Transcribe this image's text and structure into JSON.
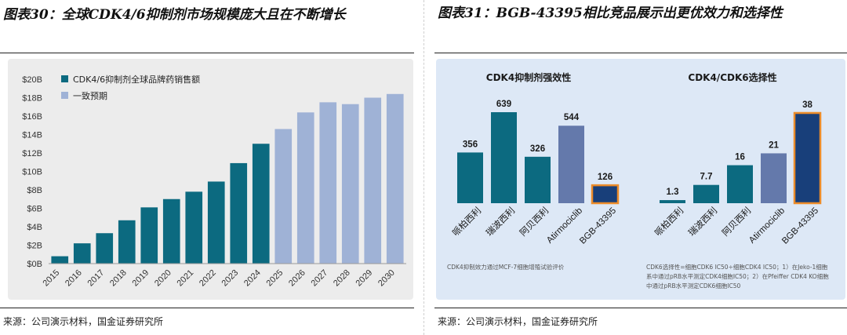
{
  "left": {
    "title": "图表30：全球CDK4/6抑制剂市场规模庞大且在不断增长",
    "source": "来源：公司演示材料，国金证券研究所"
  },
  "right": {
    "title": "图表31：BGB-43395相比竞品展示出更优效力和选择性",
    "footnote_left": "CDK4抑制效力通过MCF-7细胞增殖试验评价",
    "footnote_right_line1": "CDK6选择性=细胞CDK6 IC50÷细胞CDK4 IC50；1）在Jeko-1细胞",
    "footnote_right_line2": "系中通过pRB水平测定CDK4细胞IC50；2）在Pfeiffer CDK4 KO细胞",
    "footnote_right_line3": "中通过pRB水平测定CDK6细胞IC50",
    "source": "来源：公司演示材料，国金证券研究所"
  },
  "colors": {
    "historical": "#0c6a80",
    "forecast": "#9fb2d6",
    "bgb_fill": "#183f7a",
    "bgb_outline": "#ec8c2a",
    "atirmociclib": "#6479ab",
    "competitor": "#0c6a80"
  },
  "chart_data": [
    {
      "type": "bar",
      "title": "",
      "categories": [
        "2015",
        "2016",
        "2017",
        "2018",
        "2019",
        "2020",
        "2021",
        "2022",
        "2023",
        "2024",
        "2025",
        "2026",
        "2027",
        "2028",
        "2029",
        "2030"
      ],
      "series": [
        {
          "name": "CDK4/6抑制剂全球品牌药销售额",
          "color": "#0c6a80",
          "values": [
            0.8,
            2.2,
            3.3,
            4.7,
            6.1,
            7.0,
            7.8,
            8.9,
            10.9,
            13.0,
            null,
            null,
            null,
            null,
            null,
            null
          ]
        },
        {
          "name": "一致预期",
          "color": "#9fb2d6",
          "values": [
            null,
            null,
            null,
            null,
            null,
            null,
            null,
            null,
            null,
            null,
            14.6,
            16.4,
            17.5,
            17.3,
            18.0,
            18.4
          ]
        }
      ],
      "yticks": [
        "$0B",
        "$2B",
        "$4B",
        "$6B",
        "$8B",
        "$10B",
        "$12B",
        "$14B",
        "$16B",
        "$18B",
        "$20B"
      ],
      "ylim": [
        0,
        20
      ],
      "grid": false,
      "legend": "top-left"
    },
    {
      "type": "bar",
      "title": "CDK4抑制剂强效性",
      "categories": [
        "哌柏西利",
        "瑞波西利",
        "阿贝西利",
        "Atirmociclib",
        "BGB-43395"
      ],
      "values": [
        356,
        639,
        326,
        544,
        126
      ],
      "value_labels": [
        "356",
        "639",
        "326",
        "544",
        "126"
      ],
      "grid": false
    },
    {
      "type": "bar",
      "title": "CDK4/CDK6选择性",
      "categories": [
        "哌柏西利",
        "瑞波西利",
        "阿贝西利",
        "Atirmociclib",
        "BGB-43395"
      ],
      "values": [
        1.3,
        7.7,
        16,
        21,
        38
      ],
      "value_labels": [
        "1.3",
        "7.7",
        "16",
        "21",
        "38"
      ],
      "grid": false
    }
  ]
}
